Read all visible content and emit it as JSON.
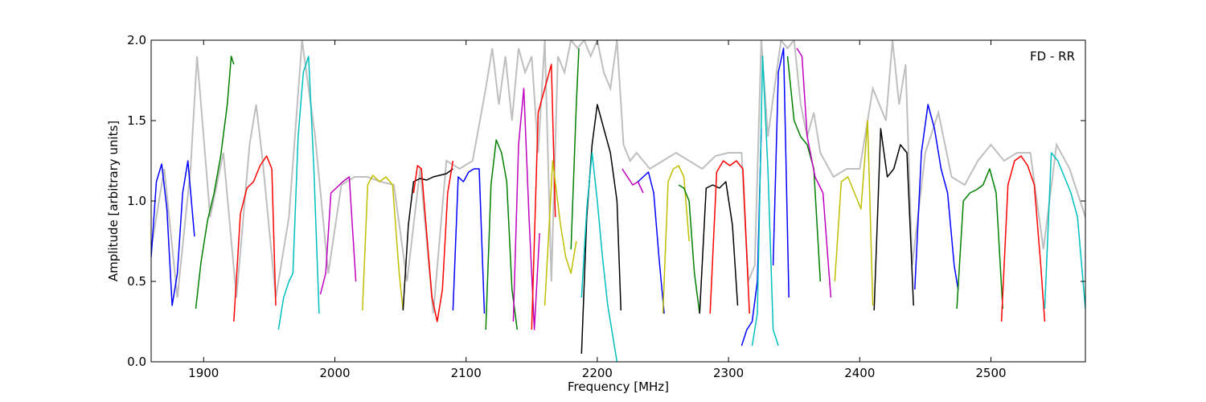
{
  "chart_data": {
    "type": "line",
    "xlabel": "Frequency [MHz]",
    "ylabel": "Amplitude [arbitrary units]",
    "xlim": [
      1860,
      2572
    ],
    "ylim": [
      0.0,
      2.0
    ],
    "annotation": "FD - RR",
    "annotation_position": "top-right",
    "grid": false,
    "x_ticks": [
      1900,
      2000,
      2100,
      2200,
      2300,
      2400,
      2500
    ],
    "x_tick_labels": [
      "1900",
      "2000",
      "2100",
      "2200",
      "2300",
      "2400",
      "2500"
    ],
    "y_ticks": [
      0.0,
      0.5,
      1.0,
      1.5,
      2.0
    ],
    "y_tick_labels": [
      "0.0",
      "0.5",
      "1.0",
      "1.5",
      "2.0"
    ],
    "background_trace_color": "#bfbfbf",
    "series": [
      {
        "color": "#0000ff",
        "x": [
          1860,
          1864,
          1868,
          1872,
          1876,
          1880,
          1884,
          1888,
          1893
        ],
        "y": [
          0.65,
          1.12,
          1.23,
          0.95,
          0.35,
          0.55,
          1.05,
          1.25,
          0.78
        ]
      },
      {
        "color": "#008000",
        "x": [
          1894,
          1898,
          1903,
          1908,
          1913,
          1918,
          1921,
          1923
        ],
        "y": [
          0.33,
          0.62,
          0.88,
          1.05,
          1.28,
          1.6,
          1.9,
          1.85
        ]
      },
      {
        "color": "#ff0000",
        "x": [
          1923,
          1928,
          1933,
          1938,
          1943,
          1948,
          1952,
          1955
        ],
        "y": [
          0.25,
          0.92,
          1.08,
          1.12,
          1.22,
          1.28,
          1.2,
          0.35
        ]
      },
      {
        "color": "#00bfbf",
        "x": [
          1957,
          1961,
          1965,
          1968,
          1972,
          1976,
          1980,
          1984,
          1988
        ],
        "y": [
          0.2,
          0.4,
          0.5,
          0.55,
          1.4,
          1.8,
          1.9,
          1.2,
          0.3
        ]
      },
      {
        "color": "#bf00bf",
        "x": [
          1989,
          1993,
          1997,
          2001,
          2006,
          2011,
          2016
        ],
        "y": [
          0.42,
          0.55,
          1.05,
          1.08,
          1.12,
          1.15,
          0.5
        ]
      },
      {
        "color": "#bfbf00",
        "x": [
          2021,
          2025,
          2029,
          2034,
          2039,
          2044,
          2049,
          2052
        ],
        "y": [
          0.32,
          1.1,
          1.16,
          1.12,
          1.15,
          1.1,
          0.55,
          0.32
        ]
      },
      {
        "color": "#000000",
        "x": [
          2052,
          2056,
          2060,
          2065,
          2070,
          2075,
          2080,
          2085,
          2090
        ],
        "y": [
          0.32,
          0.85,
          1.12,
          1.14,
          1.13,
          1.15,
          1.16,
          1.17,
          1.2
        ]
      },
      {
        "color": "#ff0000",
        "x": [
          2060,
          2063,
          2066,
          2070,
          2074,
          2078,
          2082,
          2086,
          2090
        ],
        "y": [
          1.05,
          1.22,
          1.2,
          0.8,
          0.4,
          0.25,
          0.45,
          1.05,
          1.25
        ]
      },
      {
        "color": "#0000ff",
        "x": [
          2090,
          2094,
          2098,
          2102,
          2106,
          2110,
          2114
        ],
        "y": [
          0.32,
          1.15,
          1.12,
          1.18,
          1.2,
          1.2,
          0.3
        ]
      },
      {
        "color": "#008000",
        "x": [
          2115,
          2119,
          2123,
          2127,
          2131,
          2135,
          2139
        ],
        "y": [
          0.2,
          1.1,
          1.38,
          1.3,
          1.12,
          0.45,
          0.2
        ]
      },
      {
        "color": "#bf00bf",
        "x": [
          2136,
          2140,
          2144,
          2148,
          2152,
          2156
        ],
        "y": [
          0.25,
          1.35,
          1.7,
          0.9,
          0.2,
          0.8
        ]
      },
      {
        "color": "#ff0000",
        "x": [
          2150,
          2155,
          2160,
          2165,
          2168
        ],
        "y": [
          0.2,
          1.55,
          1.7,
          1.85,
          0.9
        ]
      },
      {
        "color": "#bfbf00",
        "x": [
          2160,
          2166,
          2172,
          2176,
          2180,
          2184
        ],
        "y": [
          0.35,
          1.25,
          0.85,
          0.65,
          0.55,
          0.75
        ]
      },
      {
        "color": "#008000",
        "x": [
          2180,
          2184,
          2186
        ],
        "y": [
          0.7,
          1.6,
          1.95
        ]
      },
      {
        "color": "#000000",
        "x": [
          2188,
          2192,
          2196,
          2200,
          2205,
          2210,
          2215,
          2218
        ],
        "y": [
          0.05,
          0.9,
          1.35,
          1.6,
          1.45,
          1.3,
          1.0,
          0.32
        ]
      },
      {
        "color": "#00bfbf",
        "x": [
          2188,
          2192,
          2196,
          2200,
          2204,
          2208,
          2212,
          2215
        ],
        "y": [
          0.4,
          0.95,
          1.3,
          1.0,
          0.65,
          0.35,
          0.15,
          0.0
        ]
      },
      {
        "color": "#bf00bf",
        "x": [
          2219,
          2223,
          2227,
          2231,
          2235
        ],
        "y": [
          1.2,
          1.15,
          1.1,
          1.12,
          1.05
        ]
      },
      {
        "color": "#0000ff",
        "x": [
          2231,
          2235,
          2239,
          2243,
          2247,
          2251
        ],
        "y": [
          1.12,
          1.15,
          1.18,
          1.05,
          0.65,
          0.3
        ]
      },
      {
        "color": "#bfbf00",
        "x": [
          2250,
          2254,
          2258,
          2262,
          2266,
          2270
        ],
        "y": [
          0.3,
          1.12,
          1.2,
          1.22,
          1.15,
          0.75
        ]
      },
      {
        "color": "#008000",
        "x": [
          2262,
          2266,
          2270,
          2274,
          2278
        ],
        "y": [
          1.1,
          1.08,
          1.0,
          0.55,
          0.3
        ]
      },
      {
        "color": "#000000",
        "x": [
          2278,
          2283,
          2288,
          2293,
          2298,
          2303,
          2307
        ],
        "y": [
          0.3,
          1.08,
          1.1,
          1.08,
          1.12,
          0.85,
          0.35
        ]
      },
      {
        "color": "#ff0000",
        "x": [
          2286,
          2291,
          2296,
          2301,
          2306,
          2311,
          2316
        ],
        "y": [
          0.3,
          1.18,
          1.25,
          1.22,
          1.25,
          1.2,
          0.3
        ]
      },
      {
        "color": "#0000ff",
        "x": [
          2310,
          2314,
          2318,
          2322,
          2325
        ],
        "y": [
          0.1,
          0.2,
          0.25,
          0.5,
          1.45
        ]
      },
      {
        "color": "#00bfbf",
        "x": [
          2318,
          2322,
          2326,
          2330,
          2334,
          2338
        ],
        "y": [
          0.1,
          0.3,
          1.9,
          1.2,
          0.2,
          0.1
        ]
      },
      {
        "color": "#0000ff",
        "x": [
          2334,
          2338,
          2342,
          2346
        ],
        "y": [
          0.6,
          1.8,
          1.95,
          0.4
        ]
      },
      {
        "color": "#008000",
        "x": [
          2345,
          2350,
          2355,
          2360,
          2365,
          2370
        ],
        "y": [
          1.9,
          1.5,
          1.4,
          1.35,
          1.2,
          0.5
        ]
      },
      {
        "color": "#bf00bf",
        "x": [
          2352,
          2356,
          2360,
          2366,
          2372,
          2378
        ],
        "y": [
          1.95,
          1.9,
          1.4,
          1.15,
          1.05,
          0.4
        ]
      },
      {
        "color": "#bfbf00",
        "x": [
          2381,
          2386,
          2391,
          2396,
          2401,
          2406,
          2410
        ],
        "y": [
          0.5,
          1.12,
          1.15,
          1.05,
          0.95,
          1.5,
          0.35
        ]
      },
      {
        "color": "#000000",
        "x": [
          2411,
          2416,
          2421,
          2426,
          2431,
          2436,
          2441
        ],
        "y": [
          0.32,
          1.45,
          1.15,
          1.2,
          1.35,
          1.3,
          0.35
        ]
      },
      {
        "color": "#0000ff",
        "x": [
          2442,
          2447,
          2452,
          2457,
          2462,
          2467,
          2472,
          2475
        ],
        "y": [
          0.45,
          1.3,
          1.6,
          1.45,
          1.2,
          1.05,
          0.6,
          0.45
        ]
      },
      {
        "color": "#008000",
        "x": [
          2474,
          2479,
          2484,
          2489,
          2494,
          2499,
          2504,
          2509
        ],
        "y": [
          0.33,
          1.0,
          1.05,
          1.07,
          1.1,
          1.2,
          1.05,
          0.33
        ]
      },
      {
        "color": "#ff0000",
        "x": [
          2508,
          2513,
          2518,
          2523,
          2528,
          2533,
          2538,
          2541
        ],
        "y": [
          0.25,
          1.1,
          1.25,
          1.28,
          1.22,
          1.1,
          0.6,
          0.25
        ]
      },
      {
        "color": "#00bfbf",
        "x": [
          2541,
          2546,
          2551,
          2556,
          2561,
          2566,
          2572
        ],
        "y": [
          0.33,
          1.3,
          1.25,
          1.15,
          1.05,
          0.9,
          0.33
        ]
      }
    ],
    "background_trace": {
      "x": [
        1860,
        1870,
        1880,
        1890,
        1895,
        1905,
        1915,
        1925,
        1935,
        1940,
        1945,
        1955,
        1965,
        1975,
        1985,
        1995,
        2005,
        2015,
        2025,
        2035,
        2045,
        2055,
        2065,
        2075,
        2085,
        2095,
        2105,
        2115,
        2120,
        2125,
        2130,
        2135,
        2140,
        2145,
        2150,
        2155,
        2160,
        2165,
        2170,
        2175,
        2180,
        2185,
        2190,
        2195,
        2200,
        2205,
        2210,
        2215,
        2220,
        2225,
        2230,
        2240,
        2250,
        2260,
        2270,
        2280,
        2290,
        2300,
        2310,
        2315,
        2320,
        2325,
        2330,
        2335,
        2340,
        2345,
        2350,
        2355,
        2360,
        2365,
        2370,
        2380,
        2390,
        2400,
        2410,
        2420,
        2425,
        2430,
        2435,
        2440,
        2450,
        2460,
        2470,
        2480,
        2490,
        2500,
        2510,
        2520,
        2530,
        2540,
        2550,
        2560,
        2572
      ],
      "y": [
        0.7,
        1.2,
        0.4,
        1.2,
        1.9,
        0.9,
        1.3,
        0.4,
        1.35,
        1.6,
        1.25,
        0.4,
        0.9,
        2.0,
        1.4,
        0.55,
        1.1,
        1.15,
        1.15,
        1.12,
        1.1,
        0.5,
        1.2,
        0.3,
        1.25,
        1.2,
        1.25,
        1.7,
        1.95,
        1.6,
        1.9,
        1.5,
        1.95,
        1.8,
        1.9,
        1.3,
        2.0,
        0.5,
        1.9,
        1.8,
        2.0,
        1.95,
        2.0,
        1.9,
        2.0,
        1.8,
        1.7,
        2.0,
        1.35,
        1.25,
        1.3,
        1.2,
        1.25,
        1.3,
        1.25,
        1.2,
        1.28,
        1.3,
        1.3,
        0.5,
        0.6,
        2.0,
        1.4,
        1.7,
        2.0,
        1.95,
        2.0,
        1.6,
        1.4,
        1.55,
        1.3,
        1.15,
        1.2,
        1.2,
        1.7,
        1.5,
        2.0,
        1.6,
        1.85,
        0.6,
        1.3,
        1.55,
        1.15,
        1.1,
        1.25,
        1.35,
        1.25,
        1.3,
        1.3,
        0.7,
        1.35,
        1.2,
        0.9
      ]
    }
  }
}
